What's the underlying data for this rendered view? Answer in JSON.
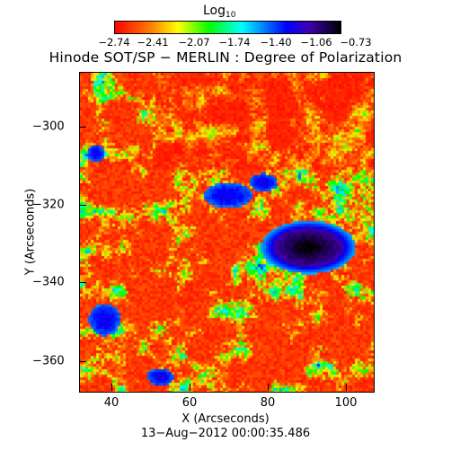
{
  "colorbar": {
    "label_main": "Log",
    "label_sub": "10",
    "tick_labels": [
      "−2.74",
      "−2.41",
      "−2.07",
      "−1.74",
      "−1.40",
      "−1.06",
      "−0.73"
    ]
  },
  "title": "Hinode SOT/SP − MERLIN : Degree of Polarization",
  "axes": {
    "ylabel": "Y (Arcseconds)",
    "xlabel": "X (Arcseconds)",
    "yticks": [
      "−300",
      "−320",
      "−340",
      "−360"
    ],
    "xticks": [
      "40",
      "60",
      "80",
      "100"
    ],
    "xrange": [
      31,
      106
    ],
    "yrange": [
      -368,
      -287
    ]
  },
  "timestamp": "13−Aug−2012 00:00:35.486",
  "colors": {
    "low": "#ff0000",
    "mid": "#00ff00",
    "high": "#000000",
    "spot_core": "#300050"
  },
  "image_features": {
    "colormap": "red-yellow-green-cyan-blue-black",
    "sunspot_center_arcsec": [
      89,
      -331
    ],
    "sunspot_radius_arcsec": [
      9,
      5
    ]
  }
}
